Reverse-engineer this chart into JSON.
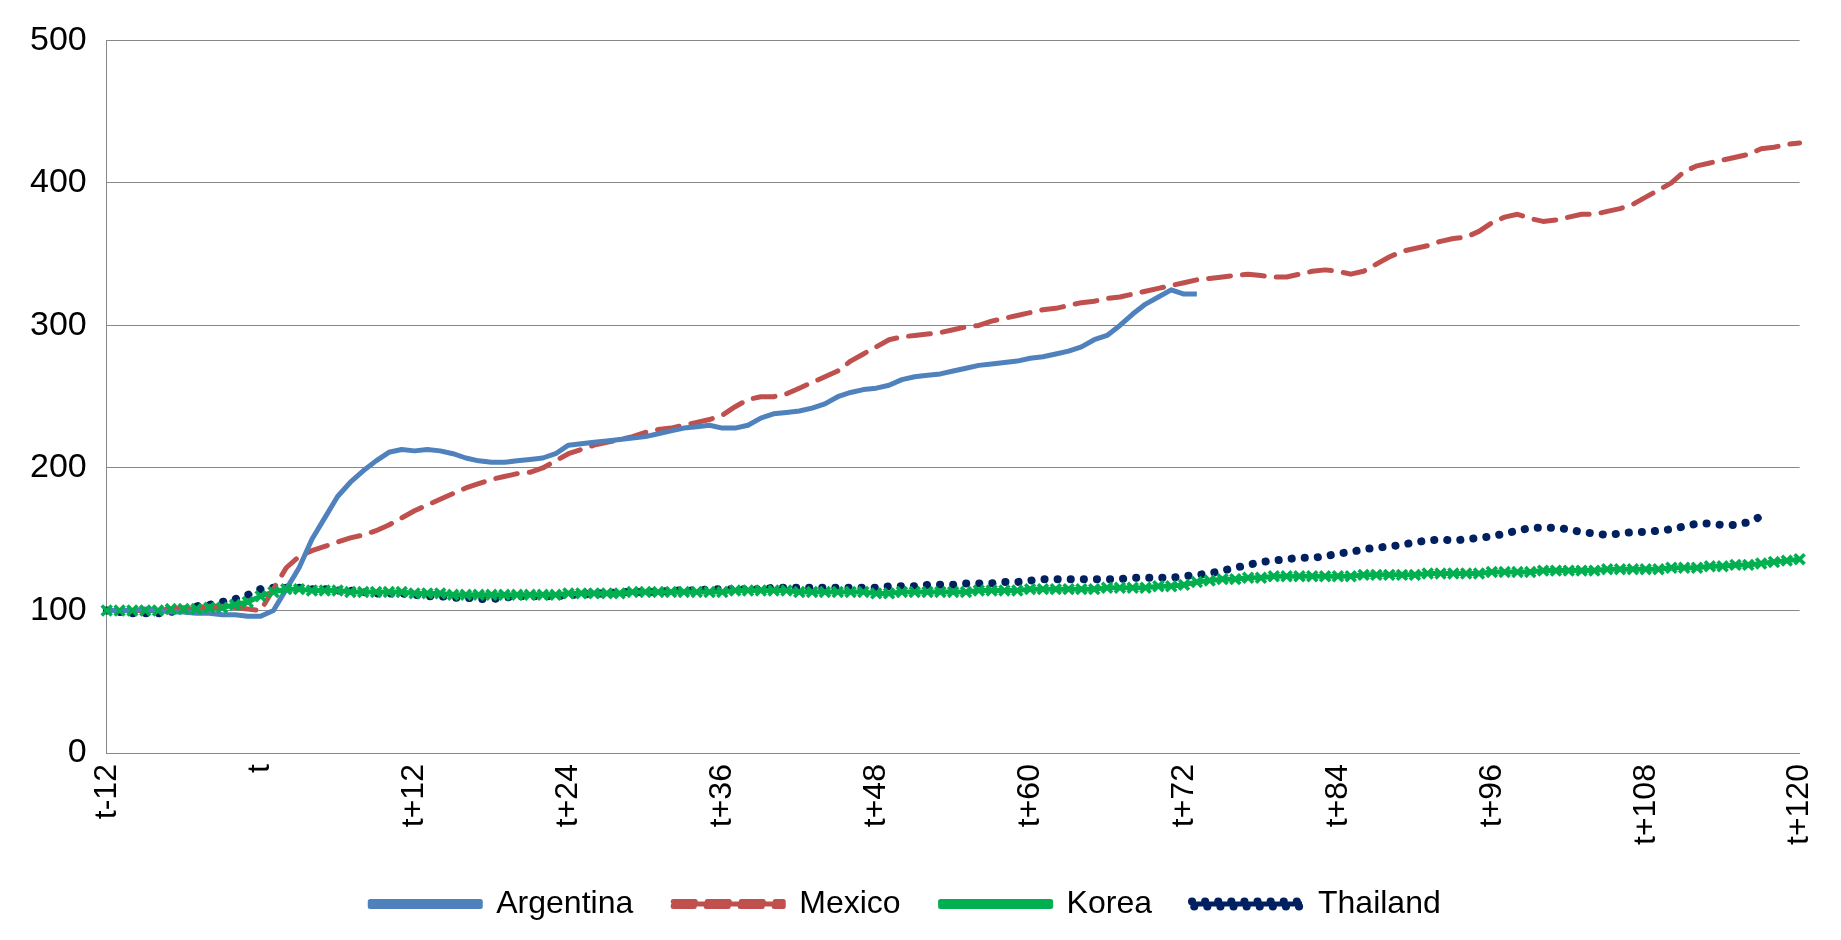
{
  "chart_data": {
    "type": "line",
    "ylim": [
      0,
      500
    ],
    "yticks": [
      0,
      100,
      200,
      300,
      400,
      500
    ],
    "grid": "y",
    "legend": "bottom",
    "categories": [
      "t-12",
      null,
      null,
      null,
      null,
      null,
      null,
      null,
      null,
      null,
      null,
      null,
      "t",
      null,
      null,
      null,
      null,
      null,
      null,
      null,
      null,
      null,
      null,
      null,
      "t+12",
      null,
      null,
      null,
      null,
      null,
      null,
      null,
      null,
      null,
      null,
      null,
      "t+24",
      null,
      null,
      null,
      null,
      null,
      null,
      null,
      null,
      null,
      null,
      null,
      "t+36",
      null,
      null,
      null,
      null,
      null,
      null,
      null,
      null,
      null,
      null,
      null,
      "t+48",
      null,
      null,
      null,
      null,
      null,
      null,
      null,
      null,
      null,
      null,
      null,
      "t+60",
      null,
      null,
      null,
      null,
      null,
      null,
      null,
      null,
      null,
      null,
      null,
      "t+72",
      null,
      null,
      null,
      null,
      null,
      null,
      null,
      null,
      null,
      null,
      null,
      "t+84",
      null,
      null,
      null,
      null,
      null,
      null,
      null,
      null,
      null,
      null,
      null,
      "t+96",
      null,
      null,
      null,
      null,
      null,
      null,
      null,
      null,
      null,
      null,
      null,
      "t+108",
      null,
      null,
      null,
      null,
      null,
      null,
      null,
      null,
      null,
      null,
      null,
      "t+120"
    ],
    "series": [
      {
        "name": "Argentina",
        "color": "#4f81bd",
        "line_style": "solid",
        "marker": "none",
        "values": [
          100,
          100,
          100,
          101,
          100,
          99,
          99,
          98,
          98,
          97,
          97,
          96,
          96,
          100,
          115,
          130,
          150,
          165,
          180,
          190,
          198,
          205,
          211,
          213,
          212,
          213,
          212,
          210,
          207,
          205,
          204,
          204,
          205,
          206,
          207,
          210,
          216,
          217,
          218,
          219,
          220,
          221,
          222,
          224,
          226,
          228,
          229,
          230,
          228,
          228,
          230,
          235,
          238,
          239,
          240,
          242,
          245,
          250,
          253,
          255,
          256,
          258,
          262,
          264,
          265,
          266,
          268,
          270,
          272,
          273,
          274,
          275,
          277,
          278,
          280,
          282,
          285,
          290,
          293,
          300,
          308,
          315,
          320,
          325,
          322,
          322,
          null,
          null,
          null,
          null,
          null,
          null,
          null,
          null,
          null,
          null,
          null,
          null,
          null,
          null,
          null,
          null,
          null,
          null,
          null,
          null,
          null,
          null,
          null,
          null,
          null,
          null,
          null,
          null,
          null,
          null,
          null,
          null,
          null,
          null,
          null,
          null,
          null,
          null,
          null,
          null,
          null,
          null,
          null,
          null,
          null,
          null,
          null
        ]
      },
      {
        "name": "Mexico",
        "color": "#c0504d",
        "line_style": "dashed",
        "marker": "none",
        "values": [
          null,
          null,
          100,
          100,
          101,
          101,
          102,
          102,
          103,
          103,
          102,
          101,
          100,
          115,
          130,
          138,
          142,
          145,
          148,
          151,
          153,
          156,
          160,
          165,
          170,
          174,
          178,
          182,
          186,
          189,
          192,
          194,
          196,
          197,
          200,
          205,
          210,
          213,
          216,
          218,
          220,
          222,
          225,
          227,
          228,
          230,
          232,
          234,
          237,
          243,
          248,
          250,
          250,
          252,
          256,
          260,
          264,
          268,
          275,
          280,
          285,
          290,
          292,
          293,
          294,
          295,
          297,
          299,
          300,
          303,
          305,
          307,
          309,
          311,
          312,
          314,
          316,
          317,
          319,
          320,
          322,
          324,
          326,
          328,
          330,
          332,
          333,
          334,
          335,
          336,
          335,
          334,
          334,
          336,
          338,
          339,
          338,
          336,
          338,
          343,
          348,
          352,
          354,
          356,
          359,
          361,
          362,
          366,
          372,
          376,
          378,
          375,
          373,
          374,
          376,
          378,
          378,
          380,
          382,
          385,
          390,
          395,
          400,
          408,
          412,
          414,
          416,
          418,
          420,
          424,
          425,
          427,
          428
        ]
      },
      {
        "name": "Korea",
        "color": "#00b050",
        "line_style": "solid",
        "marker": "cross",
        "values": [
          100,
          100,
          100,
          100,
          100,
          101,
          101,
          101,
          102,
          102,
          104,
          106,
          110,
          113,
          115,
          115,
          114,
          114,
          114,
          113,
          113,
          113,
          113,
          113,
          112,
          112,
          112,
          111,
          111,
          111,
          111,
          111,
          111,
          111,
          111,
          111,
          112,
          112,
          112,
          112,
          112,
          113,
          113,
          113,
          113,
          113,
          113,
          113,
          113,
          114,
          114,
          114,
          114,
          114,
          113,
          113,
          113,
          113,
          113,
          113,
          112,
          112,
          113,
          113,
          113,
          113,
          113,
          113,
          114,
          114,
          114,
          114,
          115,
          115,
          115,
          115,
          115,
          115,
          116,
          116,
          116,
          116,
          117,
          117,
          118,
          120,
          121,
          122,
          122,
          123,
          123,
          124,
          124,
          124,
          124,
          124,
          124,
          124,
          125,
          125,
          125,
          125,
          125,
          126,
          126,
          126,
          126,
          126,
          127,
          127,
          127,
          127,
          128,
          128,
          128,
          128,
          128,
          129,
          129,
          129,
          129,
          129,
          130,
          130,
          130,
          131,
          131,
          132,
          132,
          133,
          134,
          135,
          136
        ]
      },
      {
        "name": "Thailand",
        "color": "#002060",
        "line_style": "dotted",
        "marker": "none",
        "values": [
          100,
          99,
          98,
          98,
          98,
          99,
          100,
          103,
          104,
          106,
          108,
          111,
          115,
          116,
          116,
          116,
          115,
          115,
          114,
          114,
          113,
          112,
          112,
          112,
          111,
          110,
          110,
          109,
          109,
          108,
          108,
          109,
          110,
          110,
          110,
          110,
          111,
          111,
          112,
          112,
          113,
          113,
          113,
          113,
          114,
          114,
          114,
          115,
          115,
          115,
          115,
          115,
          116,
          116,
          116,
          116,
          116,
          116,
          116,
          116,
          116,
          117,
          117,
          117,
          118,
          118,
          118,
          119,
          119,
          119,
          120,
          120,
          121,
          122,
          122,
          122,
          122,
          122,
          122,
          122,
          123,
          123,
          123,
          123,
          124,
          125,
          126,
          128,
          130,
          132,
          134,
          135,
          136,
          137,
          137,
          138,
          140,
          141,
          143,
          144,
          145,
          146,
          148,
          149,
          150,
          149,
          150,
          151,
          152,
          154,
          156,
          158,
          158,
          158,
          157,
          155,
          154,
          153,
          154,
          155,
          155,
          156,
          157,
          159,
          161,
          161,
          160,
          160,
          162,
          166,
          null,
          null,
          null
        ]
      }
    ]
  }
}
